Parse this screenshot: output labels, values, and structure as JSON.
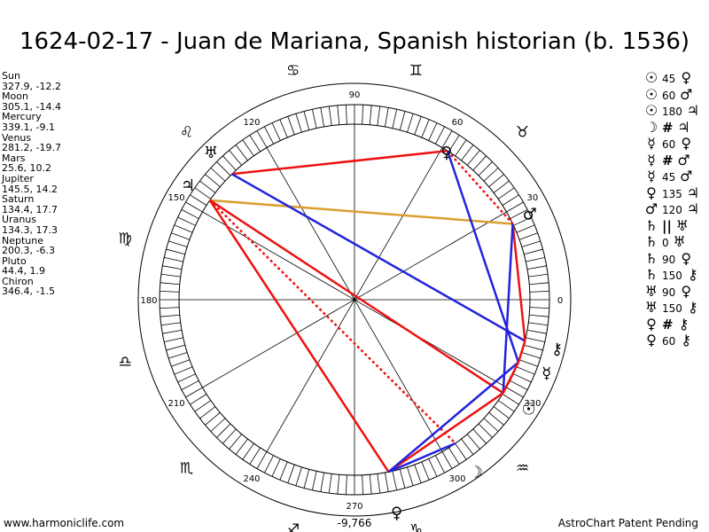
{
  "title": "1624-02-17 - Juan de Mariana, Spanish historian (b. 1536)",
  "planets": [
    {
      "name": "Sun",
      "coords": "327.9, -12.2"
    },
    {
      "name": "Moon",
      "coords": "305.1, -14.4"
    },
    {
      "name": "Mercury",
      "coords": "339.1, -9.1"
    },
    {
      "name": "Venus",
      "coords": "281.2, -19.7"
    },
    {
      "name": "Mars",
      "coords": "25.6, 10.2"
    },
    {
      "name": "Jupiter",
      "coords": "145.5, 14.2"
    },
    {
      "name": "Saturn",
      "coords": "134.4, 17.7"
    },
    {
      "name": "Uranus",
      "coords": "134.3, 17.3"
    },
    {
      "name": "Neptune",
      "coords": "200.3, -6.3"
    },
    {
      "name": "Pluto",
      "coords": "44.4, 1.9"
    },
    {
      "name": "Chiron",
      "coords": "346.4, -1.5"
    }
  ],
  "aspects": [
    {
      "p1": "☉",
      "value": "45",
      "p2": "♀"
    },
    {
      "p1": "☉",
      "value": "60",
      "p2": "♂"
    },
    {
      "p1": "☉",
      "value": "180",
      "p2": "♃"
    },
    {
      "p1": "☽",
      "value": "#",
      "p2": "♃"
    },
    {
      "p1": "☿",
      "value": "60",
      "p2": "♀"
    },
    {
      "p1": "☿",
      "value": "#",
      "p2": "♂"
    },
    {
      "p1": "☿",
      "value": "45",
      "p2": "♂"
    },
    {
      "p1": "♀",
      "value": "135",
      "p2": "♃"
    },
    {
      "p1": "♂",
      "value": "120",
      "p2": "♃"
    },
    {
      "p1": "♄",
      "value": "||",
      "p2": "♅"
    },
    {
      "p1": "♄",
      "value": "0",
      "p2": "♅"
    },
    {
      "p1": "♄",
      "value": "90",
      "p2": "♀"
    },
    {
      "p1": "♄",
      "value": "150",
      "p2": "⚷"
    },
    {
      "p1": "♅",
      "value": "90",
      "p2": "♀"
    },
    {
      "p1": "♅",
      "value": "150",
      "p2": "⚷"
    },
    {
      "p1": "♀",
      "value": "#",
      "p2": "⚷"
    },
    {
      "p1": "♀",
      "value": "60",
      "p2": "⚷"
    }
  ],
  "degree_labels": [
    "0",
    "30",
    "60",
    "90",
    "120",
    "150",
    "180",
    "210",
    "240",
    "270",
    "300",
    "330"
  ],
  "sign_glyphs": [
    "♈",
    "♉",
    "♊",
    "♋",
    "♌",
    "♍",
    "♎",
    "♏",
    "♐",
    "♑",
    "♒",
    "♓"
  ],
  "center_value": "-9,766",
  "footer_left": "www.harmoniclife.com",
  "footer_right": "AstroChart Patent Pending",
  "colors": {
    "red": "#ee1111",
    "blue": "#2222dd",
    "gold": "#d9a030"
  }
}
